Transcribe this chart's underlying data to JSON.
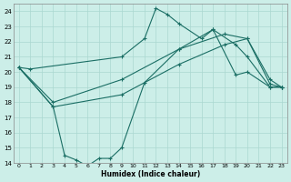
{
  "xlabel": "Humidex (Indice chaleur)",
  "bg_color": "#cceee8",
  "grid_color": "#aad8d0",
  "line_color": "#1a6e64",
  "xlim": [
    -0.5,
    23.5
  ],
  "ylim": [
    14,
    24.5
  ],
  "xticks": [
    0,
    1,
    2,
    3,
    4,
    5,
    6,
    7,
    8,
    9,
    10,
    11,
    12,
    13,
    14,
    15,
    16,
    17,
    18,
    19,
    20,
    21,
    22,
    23
  ],
  "yticks": [
    14,
    15,
    16,
    17,
    18,
    19,
    20,
    21,
    22,
    23,
    24
  ],
  "series": [
    {
      "x": [
        0,
        1,
        9,
        11,
        12,
        13,
        14,
        16,
        17,
        19,
        20,
        22,
        23
      ],
      "y": [
        20.3,
        20.2,
        21.0,
        22.2,
        24.2,
        23.8,
        23.2,
        22.2,
        22.8,
        19.8,
        20.0,
        19.0,
        19.0
      ]
    },
    {
      "x": [
        0,
        3,
        9,
        14,
        18,
        20,
        22,
        23
      ],
      "y": [
        20.3,
        18.0,
        19.5,
        21.5,
        22.5,
        22.2,
        19.2,
        19.0
      ]
    },
    {
      "x": [
        0,
        3,
        9,
        14,
        18,
        20,
        22,
        23
      ],
      "y": [
        20.3,
        17.7,
        18.5,
        20.5,
        21.8,
        22.2,
        19.5,
        19.0
      ]
    },
    {
      "x": [
        0,
        3,
        4,
        5,
        6,
        7,
        8,
        9,
        11,
        14,
        17,
        19,
        20,
        22,
        23
      ],
      "y": [
        20.3,
        17.7,
        14.5,
        14.2,
        13.8,
        14.3,
        14.3,
        15.0,
        19.3,
        21.5,
        22.8,
        21.8,
        21.0,
        19.0,
        19.0
      ]
    }
  ]
}
